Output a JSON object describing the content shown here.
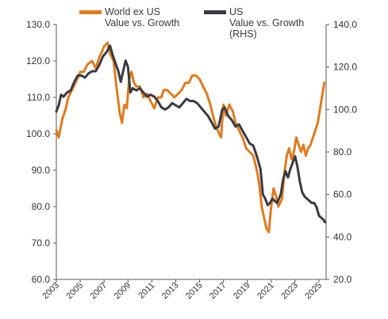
{
  "chart_data": {
    "type": "line",
    "title": "",
    "xlabel": "",
    "ylabel_left": "",
    "ylabel_right": "",
    "x_tick_labels": [
      "2003",
      "2005",
      "2007",
      "2009",
      "2011",
      "2013",
      "2015",
      "2017",
      "2019",
      "2021",
      "2023",
      "2025"
    ],
    "y_left_ticks": [
      "130.0",
      "120.0",
      "110.0",
      "100.0",
      "90.0",
      "80.0",
      "70.0",
      "60.0"
    ],
    "y_right_ticks": [
      "140.0",
      "120.0",
      "100.0",
      "80.0",
      "60.0",
      "40.0",
      "20.0"
    ],
    "ylim_left": [
      60,
      130
    ],
    "ylim_right": [
      20,
      140
    ],
    "xlim": [
      2003.0,
      2025.6
    ],
    "grid": false,
    "legend_position": "top",
    "series": [
      {
        "name": "World ex US Value vs. Growth",
        "axis": "left",
        "color": "#E07B1F",
        "points": [
          [
            2003.0,
            101
          ],
          [
            2003.2,
            99
          ],
          [
            2003.5,
            104
          ],
          [
            2003.8,
            107
          ],
          [
            2004.0,
            110
          ],
          [
            2004.3,
            112
          ],
          [
            2004.6,
            114
          ],
          [
            2005.0,
            117
          ],
          [
            2005.3,
            117
          ],
          [
            2005.6,
            119
          ],
          [
            2006.0,
            120
          ],
          [
            2006.3,
            118
          ],
          [
            2006.6,
            121
          ],
          [
            2007.0,
            124
          ],
          [
            2007.3,
            125
          ],
          [
            2007.5,
            122
          ],
          [
            2007.8,
            120
          ],
          [
            2008.0,
            114
          ],
          [
            2008.3,
            106
          ],
          [
            2008.5,
            103
          ],
          [
            2008.7,
            108
          ],
          [
            2008.9,
            107
          ],
          [
            2009.1,
            115
          ],
          [
            2009.3,
            117
          ],
          [
            2009.5,
            114
          ],
          [
            2009.7,
            113
          ],
          [
            2010.0,
            113
          ],
          [
            2010.3,
            110
          ],
          [
            2010.6,
            111
          ],
          [
            2010.9,
            109
          ],
          [
            2011.2,
            107
          ],
          [
            2011.5,
            110
          ],
          [
            2011.8,
            110
          ],
          [
            2012.0,
            112
          ],
          [
            2012.3,
            112
          ],
          [
            2012.6,
            111
          ],
          [
            2012.9,
            110
          ],
          [
            2013.2,
            111
          ],
          [
            2013.5,
            112
          ],
          [
            2013.8,
            114
          ],
          [
            2014.1,
            114
          ],
          [
            2014.4,
            116
          ],
          [
            2014.7,
            116
          ],
          [
            2015.0,
            115
          ],
          [
            2015.3,
            113
          ],
          [
            2015.6,
            111
          ],
          [
            2015.9,
            108
          ],
          [
            2016.2,
            104
          ],
          [
            2016.5,
            101
          ],
          [
            2016.8,
            99
          ],
          [
            2017.0,
            108
          ],
          [
            2017.2,
            105
          ],
          [
            2017.5,
            108
          ],
          [
            2017.8,
            106
          ],
          [
            2018.0,
            103
          ],
          [
            2018.3,
            101
          ],
          [
            2018.6,
            99
          ],
          [
            2018.9,
            96
          ],
          [
            2019.2,
            95
          ],
          [
            2019.5,
            94
          ],
          [
            2019.8,
            90
          ],
          [
            2020.0,
            86
          ],
          [
            2020.2,
            80
          ],
          [
            2020.4,
            77
          ],
          [
            2020.6,
            74
          ],
          [
            2020.8,
            73
          ],
          [
            2021.0,
            80
          ],
          [
            2021.2,
            85
          ],
          [
            2021.4,
            83
          ],
          [
            2021.6,
            80
          ],
          [
            2021.9,
            82
          ],
          [
            2022.1,
            89
          ],
          [
            2022.3,
            94
          ],
          [
            2022.5,
            96
          ],
          [
            2022.7,
            93
          ],
          [
            2022.9,
            95
          ],
          [
            2023.1,
            99
          ],
          [
            2023.3,
            97
          ],
          [
            2023.5,
            95
          ],
          [
            2023.7,
            97
          ],
          [
            2023.9,
            94
          ],
          [
            2024.1,
            96
          ],
          [
            2024.3,
            97
          ],
          [
            2024.5,
            99
          ],
          [
            2024.7,
            101
          ],
          [
            2024.9,
            103
          ],
          [
            2025.1,
            107
          ],
          [
            2025.3,
            111
          ],
          [
            2025.45,
            114
          ]
        ]
      },
      {
        "name": "US Value vs. Growth (RHS)",
        "axis": "right",
        "color": "#3A3A42",
        "points": [
          [
            2003.0,
            99
          ],
          [
            2003.2,
            102
          ],
          [
            2003.4,
            107
          ],
          [
            2003.6,
            106
          ],
          [
            2003.9,
            108
          ],
          [
            2004.2,
            109
          ],
          [
            2004.5,
            113
          ],
          [
            2004.8,
            116
          ],
          [
            2005.1,
            116
          ],
          [
            2005.4,
            115
          ],
          [
            2005.7,
            117
          ],
          [
            2006.0,
            118
          ],
          [
            2006.3,
            118
          ],
          [
            2006.6,
            121
          ],
          [
            2006.9,
            125
          ],
          [
            2007.2,
            127
          ],
          [
            2007.5,
            130
          ],
          [
            2007.7,
            126
          ],
          [
            2008.0,
            121
          ],
          [
            2008.2,
            118
          ],
          [
            2008.4,
            113
          ],
          [
            2008.6,
            118
          ],
          [
            2008.8,
            123
          ],
          [
            2009.0,
            120
          ],
          [
            2009.2,
            108
          ],
          [
            2009.4,
            110
          ],
          [
            2009.7,
            109
          ],
          [
            2010.0,
            110
          ],
          [
            2010.3,
            108
          ],
          [
            2010.6,
            106
          ],
          [
            2010.9,
            107
          ],
          [
            2011.2,
            106
          ],
          [
            2011.5,
            104
          ],
          [
            2011.8,
            101
          ],
          [
            2012.1,
            100
          ],
          [
            2012.4,
            101
          ],
          [
            2012.7,
            103
          ],
          [
            2013.0,
            102
          ],
          [
            2013.3,
            101
          ],
          [
            2013.6,
            103
          ],
          [
            2013.9,
            105
          ],
          [
            2014.2,
            104
          ],
          [
            2014.5,
            104
          ],
          [
            2014.8,
            103
          ],
          [
            2015.1,
            101
          ],
          [
            2015.4,
            99
          ],
          [
            2015.7,
            97
          ],
          [
            2016.0,
            94
          ],
          [
            2016.3,
            91
          ],
          [
            2016.6,
            92
          ],
          [
            2016.9,
            100
          ],
          [
            2017.1,
            101
          ],
          [
            2017.4,
            97
          ],
          [
            2017.7,
            95
          ],
          [
            2018.0,
            92
          ],
          [
            2018.3,
            93
          ],
          [
            2018.6,
            90
          ],
          [
            2018.9,
            87
          ],
          [
            2019.2,
            84
          ],
          [
            2019.5,
            83
          ],
          [
            2019.8,
            78
          ],
          [
            2020.1,
            72
          ],
          [
            2020.3,
            60
          ],
          [
            2020.5,
            58
          ],
          [
            2020.7,
            55
          ],
          [
            2020.9,
            56
          ],
          [
            2021.1,
            58
          ],
          [
            2021.3,
            57
          ],
          [
            2021.5,
            56
          ],
          [
            2021.8,
            60
          ],
          [
            2022.0,
            67
          ],
          [
            2022.2,
            71
          ],
          [
            2022.4,
            68
          ],
          [
            2022.6,
            72
          ],
          [
            2022.8,
            75
          ],
          [
            2023.0,
            78
          ],
          [
            2023.2,
            73
          ],
          [
            2023.4,
            66
          ],
          [
            2023.6,
            61
          ],
          [
            2023.8,
            59
          ],
          [
            2024.0,
            58
          ],
          [
            2024.2,
            57
          ],
          [
            2024.4,
            56
          ],
          [
            2024.6,
            56
          ],
          [
            2024.8,
            54
          ],
          [
            2025.0,
            50
          ],
          [
            2025.2,
            49
          ],
          [
            2025.4,
            48
          ],
          [
            2025.5,
            47
          ]
        ]
      }
    ]
  },
  "legend": {
    "series_1_label": "World ex US\nValue vs. Growth",
    "series_2_label": "US\nValue vs. Growth\n(RHS)"
  }
}
